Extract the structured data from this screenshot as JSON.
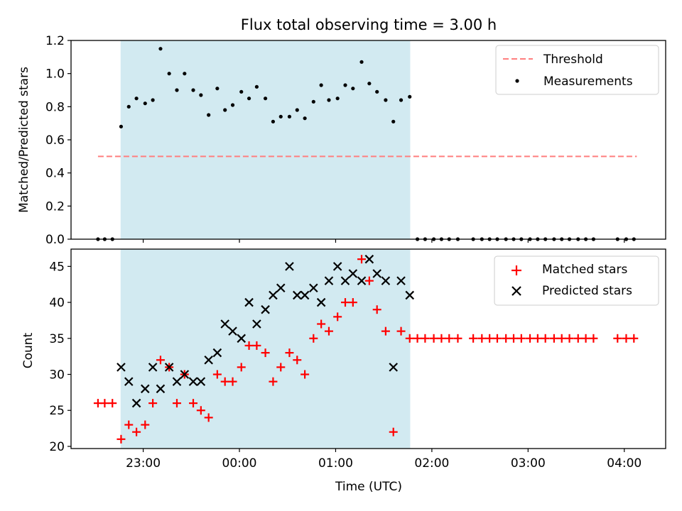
{
  "title": "Flux total observing time = 3.00 h",
  "colors": {
    "shade": "#add8e6",
    "threshold": "#ff7f7f",
    "matched": "#ff0000",
    "predicted": "#000000",
    "measurement": "#000000"
  },
  "chart_data": [
    {
      "type": "scatter",
      "panel": "top",
      "ylabel": "Matched/Predicted stars",
      "ylim": [
        0,
        1.2
      ],
      "yticks": [
        0.0,
        0.2,
        0.4,
        0.6,
        0.8,
        1.0,
        1.2
      ],
      "ytick_labels": [
        "0.0",
        "0.2",
        "0.4",
        "0.6",
        "0.8",
        "1.0",
        "1.2"
      ],
      "x_unit": "hours since 00:00 UTC",
      "xlim": [
        -1.75,
        4.43
      ],
      "observing_window": [
        -1.235,
        1.775
      ],
      "legend": {
        "position": "top-right",
        "entries": [
          {
            "label": "Threshold",
            "style": "dashed-line",
            "color": "#ff7f7f"
          },
          {
            "label": "Measurements",
            "style": "dot",
            "color": "#000000"
          }
        ]
      },
      "threshold": {
        "value": 0.5,
        "x_range": [
          -1.47,
          4.13
        ]
      },
      "measurements": {
        "x": [
          -1.47,
          -1.4,
          -1.32,
          -1.23,
          -1.15,
          -1.07,
          -0.98,
          -0.9,
          -0.82,
          -0.73,
          -0.65,
          -0.57,
          -0.48,
          -0.4,
          -0.32,
          -0.23,
          -0.15,
          -0.07,
          0.02,
          0.1,
          0.18,
          0.27,
          0.35,
          0.43,
          0.52,
          0.6,
          0.68,
          0.77,
          0.85,
          0.93,
          1.02,
          1.1,
          1.18,
          1.27,
          1.35,
          1.43,
          1.52,
          1.6,
          1.68,
          1.77,
          1.85,
          1.93,
          2.02,
          2.1,
          2.18,
          2.27,
          2.43,
          2.52,
          2.6,
          2.68,
          2.77,
          2.85,
          2.93,
          3.02,
          3.1,
          3.18,
          3.27,
          3.35,
          3.43,
          3.52,
          3.6,
          3.68,
          3.93,
          4.02,
          4.1
        ],
        "y": [
          0,
          0,
          0,
          0.68,
          0.8,
          0.85,
          0.82,
          0.84,
          1.15,
          1.0,
          0.9,
          1.0,
          0.9,
          0.87,
          0.75,
          0.91,
          0.78,
          0.81,
          0.89,
          0.85,
          0.92,
          0.85,
          0.71,
          0.74,
          0.74,
          0.78,
          0.73,
          0.83,
          0.93,
          0.84,
          0.85,
          0.93,
          0.91,
          1.07,
          0.94,
          0.89,
          0.84,
          0.71,
          0.84,
          0.86,
          0,
          0,
          0,
          0,
          0,
          0,
          0,
          0,
          0,
          0,
          0,
          0,
          0,
          0,
          0,
          0,
          0,
          0,
          0,
          0,
          0,
          0,
          0,
          0,
          0
        ]
      }
    },
    {
      "type": "scatter",
      "panel": "bottom",
      "xlabel": "Time (UTC)",
      "ylabel": "Count",
      "ylim": [
        19.7,
        47.4
      ],
      "yticks": [
        20,
        25,
        30,
        35,
        40,
        45
      ],
      "ytick_labels": [
        "20",
        "25",
        "30",
        "35",
        "40",
        "45"
      ],
      "x_unit": "hours since 00:00 UTC",
      "xlim": [
        -1.75,
        4.43
      ],
      "xticks": [
        -1,
        0,
        1,
        2,
        3,
        4
      ],
      "xtick_labels": [
        "23:00",
        "00:00",
        "01:00",
        "02:00",
        "03:00",
        "04:00"
      ],
      "observing_window": [
        -1.235,
        1.775
      ],
      "legend": {
        "position": "top-right",
        "entries": [
          {
            "label": "Matched stars",
            "style": "plus",
            "color": "#ff0000"
          },
          {
            "label": "Predicted stars",
            "style": "cross",
            "color": "#000000"
          }
        ]
      },
      "series": [
        {
          "name": "Matched stars",
          "marker": "plus",
          "color": "#ff0000",
          "x": [
            -1.47,
            -1.4,
            -1.32,
            -1.23,
            -1.15,
            -1.07,
            -0.98,
            -0.9,
            -0.82,
            -0.73,
            -0.65,
            -0.57,
            -0.48,
            -0.4,
            -0.32,
            -0.23,
            -0.15,
            -0.07,
            0.02,
            0.1,
            0.18,
            0.27,
            0.35,
            0.43,
            0.52,
            0.6,
            0.68,
            0.77,
            0.85,
            0.93,
            1.02,
            1.1,
            1.18,
            1.27,
            1.35,
            1.43,
            1.52,
            1.6,
            1.68,
            1.77,
            1.85,
            1.93,
            2.02,
            2.1,
            2.18,
            2.27,
            2.43,
            2.52,
            2.6,
            2.68,
            2.77,
            2.85,
            2.93,
            3.02,
            3.1,
            3.18,
            3.27,
            3.35,
            3.43,
            3.52,
            3.6,
            3.68,
            3.93,
            4.02,
            4.1
          ],
          "y": [
            26,
            26,
            26,
            21,
            23,
            22,
            23,
            26,
            32,
            31,
            26,
            30,
            26,
            25,
            24,
            30,
            29,
            29,
            31,
            34,
            34,
            33,
            29,
            31,
            33,
            32,
            30,
            35,
            37,
            36,
            38,
            40,
            40,
            46,
            43,
            39,
            36,
            22,
            36,
            35,
            35,
            35,
            35,
            35,
            35,
            35,
            35,
            35,
            35,
            35,
            35,
            35,
            35,
            35,
            35,
            35,
            35,
            35,
            35,
            35,
            35,
            35,
            35,
            35,
            35
          ]
        },
        {
          "name": "Predicted stars",
          "marker": "cross",
          "color": "#000000",
          "x": [
            -1.23,
            -1.15,
            -1.07,
            -0.98,
            -0.9,
            -0.82,
            -0.73,
            -0.65,
            -0.57,
            -0.48,
            -0.4,
            -0.32,
            -0.23,
            -0.15,
            -0.07,
            0.02,
            0.1,
            0.18,
            0.27,
            0.35,
            0.43,
            0.52,
            0.6,
            0.68,
            0.77,
            0.85,
            0.93,
            1.02,
            1.1,
            1.18,
            1.27,
            1.35,
            1.43,
            1.52,
            1.6,
            1.68,
            1.77
          ],
          "y": [
            31,
            29,
            26,
            28,
            31,
            28,
            31,
            29,
            30,
            29,
            29,
            32,
            33,
            37,
            36,
            35,
            40,
            37,
            39,
            41,
            42,
            45,
            41,
            41,
            42,
            40,
            43,
            45,
            43,
            44,
            43,
            46,
            44,
            43,
            31,
            43,
            41
          ]
        }
      ]
    }
  ]
}
